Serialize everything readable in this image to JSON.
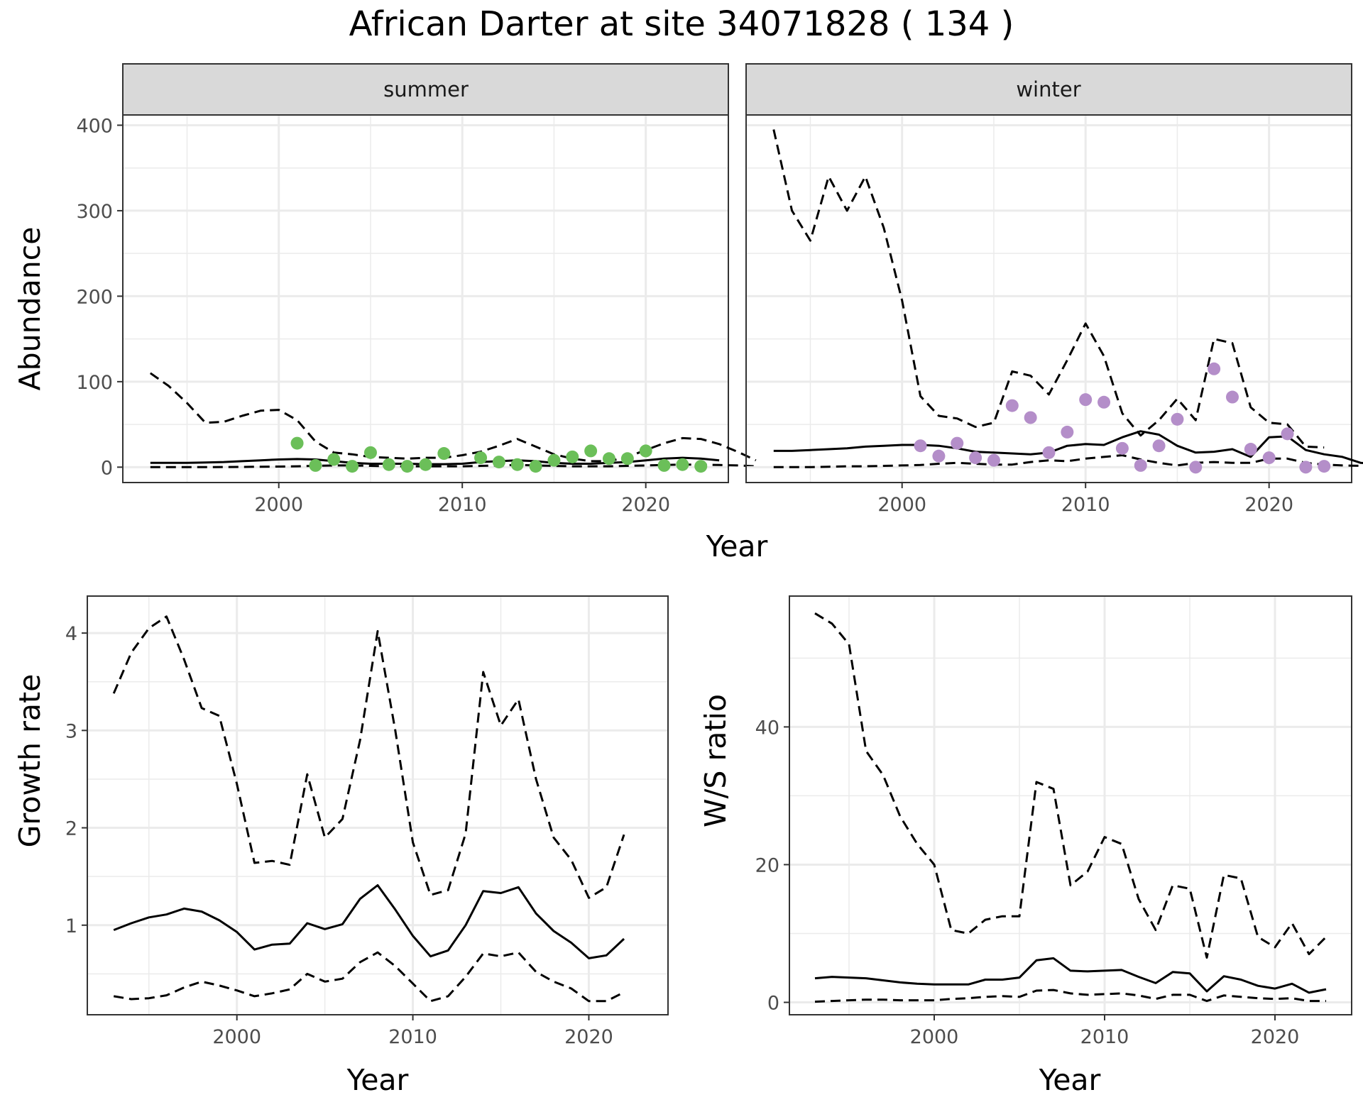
{
  "title": "African Darter at site 34071828 ( 134 )",
  "colors": {
    "summer_points": "#6bbf59",
    "winter_points": "#b48ec9",
    "line": "#000000",
    "strip_fill": "#d9d9d9",
    "grid": "#ebebeb",
    "panel_border": "#333333"
  },
  "abundance": {
    "ylabel": "Abundance",
    "xlabel": "Year",
    "facets": [
      "summer",
      "winter"
    ]
  },
  "growth": {
    "ylabel": "Growth rate",
    "xlabel": "Year"
  },
  "ws": {
    "ylabel": "W/S ratio",
    "xlabel": "Year"
  },
  "chart_data": [
    {
      "type": "line",
      "panel": "abundance",
      "facets": [
        "summer",
        "winter"
      ],
      "xlabel": "Year",
      "ylabel": "Abundance",
      "xlim": [
        1991.5,
        2024.5
      ],
      "ylim": [
        -18,
        412
      ],
      "xticks": [
        2000,
        2010,
        2020
      ],
      "yticks": [
        0,
        100,
        200,
        300,
        400
      ],
      "grid": true,
      "series": [
        {
          "facet": "summer",
          "style": "solid",
          "x_start": 1993,
          "values": [
            5,
            5,
            5,
            5.5,
            6,
            7,
            8,
            9,
            9.5,
            9,
            7,
            5,
            4,
            4,
            4,
            3.5,
            3.5,
            4,
            6,
            7,
            8,
            7,
            5,
            4,
            4,
            5,
            6,
            8,
            10,
            11,
            10,
            8
          ]
        },
        {
          "facet": "summer",
          "style": "dashed",
          "x_start": 1993,
          "values": [
            110,
            95,
            75,
            52,
            53,
            60,
            66,
            67,
            55,
            30,
            17,
            15,
            12,
            11,
            10,
            11,
            11,
            14,
            18,
            25,
            33,
            24,
            15,
            10,
            7,
            7,
            12,
            20,
            28,
            34,
            33,
            27,
            18,
            8
          ]
        },
        {
          "facet": "summer",
          "style": "dashed",
          "x_start": 1993,
          "values": [
            0,
            0,
            0,
            0,
            0.2,
            0.3,
            0.5,
            0.7,
            1,
            1.5,
            2,
            2,
            1.5,
            1,
            1,
            1,
            1,
            1,
            1.5,
            2,
            2.5,
            2,
            1.5,
            1,
            1,
            1,
            1.5,
            2,
            2.5,
            3,
            3,
            2.5,
            2,
            1
          ]
        },
        {
          "facet": "winter",
          "style": "solid",
          "x_start": 1993,
          "values": [
            19,
            19,
            20,
            21,
            22,
            24,
            25,
            26,
            26,
            25,
            22,
            18,
            17,
            16,
            15,
            17,
            25,
            27,
            26,
            35,
            42,
            38,
            25,
            17,
            18,
            21,
            12,
            35,
            36,
            20,
            15,
            12,
            5,
            4
          ]
        },
        {
          "facet": "winter",
          "style": "dashed",
          "x_start": 1993,
          "values": [
            395,
            300,
            265,
            340,
            300,
            340,
            280,
            195,
            83,
            60,
            57,
            47,
            52,
            112,
            107,
            85,
            125,
            168,
            130,
            63,
            37,
            55,
            80,
            55,
            150,
            145,
            70,
            52,
            50,
            24,
            23
          ]
        },
        {
          "facet": "winter",
          "style": "dashed",
          "x_start": 1993,
          "values": [
            0,
            0,
            0,
            0.5,
            1,
            1,
            1.5,
            2,
            2.5,
            4,
            5,
            4,
            3,
            3,
            6,
            8,
            7,
            10,
            12,
            14,
            9,
            5,
            2,
            5,
            6,
            5,
            5,
            10,
            10,
            5,
            3,
            2,
            1.5
          ]
        },
        {
          "facet": "summer",
          "style": "points",
          "name": "",
          "x": [
            2001,
            2002,
            2003,
            2004,
            2005,
            2006,
            2007,
            2008,
            2009,
            2011,
            2012,
            2013,
            2014,
            2015,
            2016,
            2017,
            2018,
            2019,
            2020,
            2021,
            2022,
            2023
          ],
          "values": [
            28,
            2,
            9,
            1,
            17,
            3,
            1,
            3,
            16,
            11,
            6,
            3,
            1,
            8,
            12,
            19,
            10,
            10,
            19,
            2,
            3,
            1
          ]
        },
        {
          "facet": "winter",
          "style": "points",
          "name": "",
          "x": [
            2001,
            2002,
            2003,
            2004,
            2005,
            2006,
            2007,
            2008,
            2009,
            2010,
            2011,
            2012,
            2013,
            2014,
            2015,
            2016,
            2017,
            2018,
            2019,
            2020,
            2021,
            2022,
            2023
          ],
          "values": [
            25,
            13,
            28,
            11,
            8,
            72,
            58,
            17,
            41,
            79,
            76,
            22,
            2,
            25,
            56,
            0,
            115,
            82,
            21,
            11,
            39,
            0,
            1
          ]
        }
      ]
    },
    {
      "type": "line",
      "panel": "growth",
      "xlabel": "Year",
      "ylabel": "Growth rate",
      "xlim": [
        1991.5,
        2024.5
      ],
      "ylim": [
        0.08,
        4.38
      ],
      "xticks": [
        2000,
        2010,
        2020
      ],
      "yticks": [
        1,
        2,
        3,
        4
      ],
      "grid": true,
      "series": [
        {
          "style": "solid",
          "x_start": 1993,
          "values": [
            0.95,
            1.02,
            1.08,
            1.11,
            1.17,
            1.14,
            1.05,
            0.93,
            0.75,
            0.8,
            0.81,
            1.02,
            0.96,
            1.01,
            1.27,
            1.41,
            1.16,
            0.89,
            0.68,
            0.74,
            1.0,
            1.35,
            1.33,
            1.39,
            1.12,
            0.94,
            0.82,
            0.66,
            0.69,
            0.86
          ]
        },
        {
          "style": "dashed",
          "x_start": 1993,
          "values": [
            3.38,
            3.8,
            4.05,
            4.17,
            3.73,
            3.23,
            3.15,
            2.45,
            1.64,
            1.66,
            1.62,
            2.55,
            1.9,
            2.09,
            2.9,
            4.02,
            3.0,
            1.85,
            1.31,
            1.36,
            1.94,
            3.6,
            3.05,
            3.32,
            2.5,
            1.9,
            1.67,
            1.28,
            1.39,
            1.93
          ]
        },
        {
          "style": "dashed",
          "x_start": 1993,
          "values": [
            0.27,
            0.24,
            0.25,
            0.28,
            0.36,
            0.42,
            0.38,
            0.33,
            0.27,
            0.3,
            0.34,
            0.5,
            0.42,
            0.45,
            0.62,
            0.72,
            0.58,
            0.4,
            0.22,
            0.27,
            0.47,
            0.71,
            0.68,
            0.72,
            0.52,
            0.42,
            0.35,
            0.22,
            0.22,
            0.31
          ]
        }
      ]
    },
    {
      "type": "line",
      "panel": "ws",
      "xlabel": "Year",
      "ylabel": "W/S ratio",
      "xlim": [
        1991.5,
        2024.5
      ],
      "ylim": [
        -1.8,
        59
      ],
      "xticks": [
        2000,
        2010,
        2020
      ],
      "yticks": [
        0,
        20,
        40
      ],
      "grid": true,
      "series": [
        {
          "style": "solid",
          "x_start": 1993,
          "values": [
            3.5,
            3.7,
            3.6,
            3.5,
            3.2,
            2.9,
            2.7,
            2.6,
            2.6,
            2.6,
            3.3,
            3.3,
            3.6,
            6.1,
            6.4,
            4.6,
            4.5,
            4.6,
            4.7,
            3.7,
            2.8,
            4.4,
            4.2,
            1.6,
            3.8,
            3.3,
            2.4,
            2.0,
            2.7,
            1.4,
            1.9
          ]
        },
        {
          "style": "dashed",
          "x_start": 1993,
          "values": [
            56.5,
            55,
            52,
            36.5,
            33,
            27,
            23,
            20,
            10.5,
            10,
            12,
            12.5,
            12.5,
            32,
            31,
            17,
            19,
            24,
            23,
            15,
            10.5,
            17,
            16.5,
            6.5,
            18.5,
            18,
            9.5,
            8,
            11.5,
            7,
            9.5
          ]
        },
        {
          "style": "dashed",
          "x_start": 1993,
          "values": [
            0.1,
            0.2,
            0.3,
            0.4,
            0.4,
            0.3,
            0.3,
            0.3,
            0.5,
            0.6,
            0.8,
            0.9,
            0.8,
            1.7,
            1.8,
            1.3,
            1.1,
            1.2,
            1.3,
            1.0,
            0.5,
            1.1,
            1.1,
            0.2,
            1.0,
            0.8,
            0.6,
            0.5,
            0.6,
            0.2,
            0.2
          ]
        }
      ]
    }
  ]
}
